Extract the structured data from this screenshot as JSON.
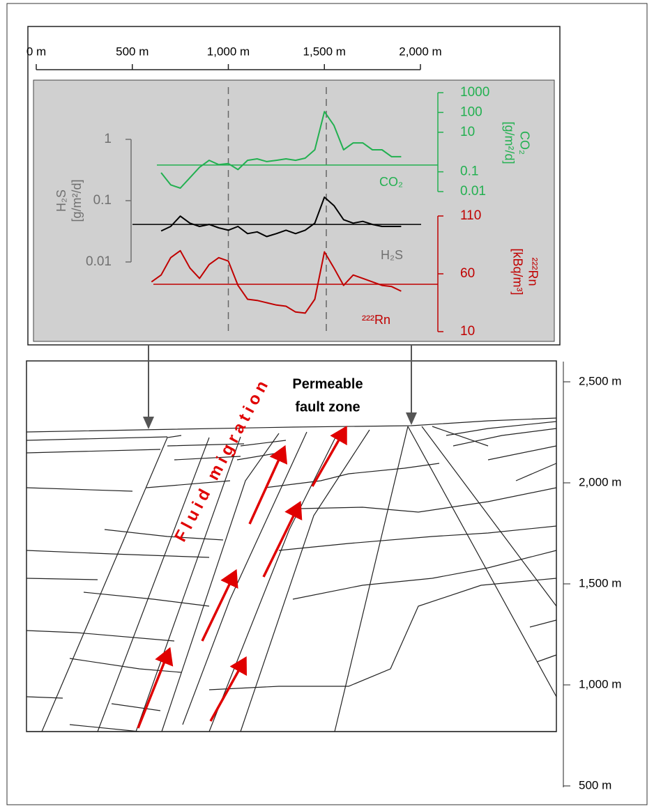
{
  "chart_data": {
    "type": "line",
    "x": [
      600,
      650,
      700,
      750,
      800,
      850,
      900,
      950,
      1000,
      1050,
      1100,
      1150,
      1200,
      1250,
      1300,
      1350,
      1400,
      1450,
      1500,
      1550,
      1600,
      1650,
      1700,
      1750,
      1800,
      1850,
      1900
    ],
    "xlim": [
      0,
      2000
    ],
    "xticks": [
      {
        "value": 0,
        "label": "0 m"
      },
      {
        "value": 500,
        "label": "500 m"
      },
      {
        "value": 1000,
        "label": "1,000 m"
      },
      {
        "value": 1500,
        "label": "1,500 m"
      },
      {
        "value": 2000,
        "label": "2,000 m"
      }
    ],
    "vlines": [
      1000,
      1510
    ],
    "series": [
      {
        "name": "CO₂",
        "color": "#22b050",
        "ylabel": [
          "CO₂",
          "[g/m²/d]"
        ],
        "log": true,
        "ylim": [
          0.01,
          1000
        ],
        "yticks": [
          0.01,
          0.1,
          10,
          100,
          1000
        ],
        "baseline": 0.22,
        "values": [
          null,
          0.09,
          0.022,
          0.015,
          0.05,
          0.17,
          0.38,
          0.23,
          0.26,
          0.13,
          0.38,
          0.45,
          0.33,
          0.38,
          0.45,
          0.38,
          0.49,
          1.3,
          110,
          22,
          1.3,
          2.9,
          2.9,
          1.3,
          1.3,
          0.58,
          0.58
        ]
      },
      {
        "name": "H₂S",
        "color": "#000000",
        "label_color": "#707070",
        "ylabel": [
          "H₂S",
          "[g/m²/d]"
        ],
        "log": true,
        "ylim": [
          0.01,
          1
        ],
        "yticks": [
          0.01,
          0.1,
          1
        ],
        "baseline": 0.041,
        "values": [
          null,
          0.032,
          0.038,
          0.056,
          0.043,
          0.038,
          0.041,
          0.036,
          0.033,
          0.038,
          0.029,
          0.031,
          0.026,
          0.029,
          0.033,
          0.029,
          0.033,
          0.043,
          0.114,
          0.083,
          0.049,
          0.043,
          0.046,
          0.041,
          0.038,
          0.038,
          0.038
        ]
      },
      {
        "name": "²²²Rn",
        "color": "#c00000",
        "ylabel": [
          "²²²Rn",
          "[kBq/m³]"
        ],
        "log": false,
        "ylim": [
          10,
          110
        ],
        "yticks": [
          10,
          60,
          110
        ],
        "baseline": 51,
        "values": [
          53,
          59,
          74,
          80,
          65,
          56,
          68,
          74,
          71,
          50,
          38,
          37,
          35,
          33,
          32,
          27,
          26,
          38,
          79,
          65,
          50,
          59,
          56,
          53,
          50,
          49,
          45
        ]
      }
    ]
  },
  "section": {
    "label": [
      "Permeable",
      "fault zone"
    ],
    "annotation": "Fluid migration",
    "depth_axis": {
      "ylim": [
        500,
        2600
      ],
      "yticks": [
        {
          "value": 2500,
          "label": "2,500 m"
        },
        {
          "value": 2000,
          "label": "2,000 m"
        },
        {
          "value": 1500,
          "label": "1,500 m"
        },
        {
          "value": 1000,
          "label": "1,000 m"
        },
        {
          "value": 500,
          "label": "500 m"
        }
      ]
    }
  }
}
